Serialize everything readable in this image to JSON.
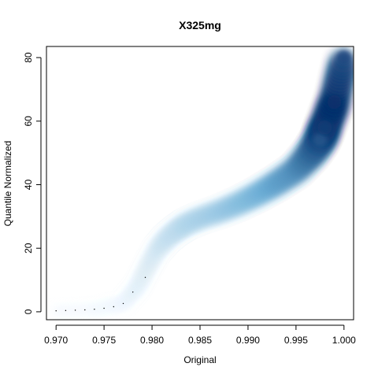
{
  "chart_data": {
    "type": "scatter",
    "style": "smoothScatter density",
    "title": "X325mg",
    "xlabel": "Original",
    "ylabel": "Quantile Normalized",
    "xlim": [
      0.969,
      1.001
    ],
    "ylim": [
      -2.5,
      83.5
    ],
    "x_ticks": [
      0.97,
      0.975,
      0.98,
      0.985,
      0.99,
      0.995,
      1.0
    ],
    "x_tick_labels": [
      "0.970",
      "0.975",
      "0.980",
      "0.985",
      "0.990",
      "0.995",
      "1.000"
    ],
    "y_ticks": [
      0,
      20,
      40,
      60,
      80
    ],
    "y_tick_labels": [
      "0",
      "20",
      "40",
      "60",
      "80"
    ],
    "color_low": "#ffffff",
    "color_high": "#08306b",
    "outlier_points": [
      {
        "x": 0.97,
        "y": 0.3
      },
      {
        "x": 0.971,
        "y": 0.4
      },
      {
        "x": 0.972,
        "y": 0.5
      },
      {
        "x": 0.973,
        "y": 0.6
      },
      {
        "x": 0.974,
        "y": 0.8
      },
      {
        "x": 0.975,
        "y": 1.1
      },
      {
        "x": 0.976,
        "y": 1.6
      },
      {
        "x": 0.977,
        "y": 2.6
      },
      {
        "x": 0.978,
        "y": 6.2
      },
      {
        "x": 0.9793,
        "y": 10.8
      }
    ],
    "density_curve": [
      {
        "x": 0.97,
        "y": 0.3,
        "d": 0.05
      },
      {
        "x": 0.974,
        "y": 0.8,
        "d": 0.06
      },
      {
        "x": 0.977,
        "y": 2.6,
        "d": 0.08
      },
      {
        "x": 0.9785,
        "y": 8.0,
        "d": 0.12
      },
      {
        "x": 0.9795,
        "y": 14.0,
        "d": 0.14
      },
      {
        "x": 0.9805,
        "y": 19.5,
        "d": 0.17
      },
      {
        "x": 0.9815,
        "y": 23.0,
        "d": 0.2
      },
      {
        "x": 0.9825,
        "y": 25.5,
        "d": 0.22
      },
      {
        "x": 0.9835,
        "y": 27.5,
        "d": 0.26
      },
      {
        "x": 0.985,
        "y": 29.5,
        "d": 0.3
      },
      {
        "x": 0.987,
        "y": 31.5,
        "d": 0.35
      },
      {
        "x": 0.989,
        "y": 34.0,
        "d": 0.4
      },
      {
        "x": 0.991,
        "y": 37.0,
        "d": 0.47
      },
      {
        "x": 0.993,
        "y": 40.5,
        "d": 0.55
      },
      {
        "x": 0.995,
        "y": 44.5,
        "d": 0.62
      },
      {
        "x": 0.9965,
        "y": 49.5,
        "d": 0.75
      },
      {
        "x": 0.9975,
        "y": 54.0,
        "d": 0.85
      },
      {
        "x": 0.998,
        "y": 58.0,
        "d": 0.95
      },
      {
        "x": 0.999,
        "y": 66.0,
        "d": 1.0
      },
      {
        "x": 1.0,
        "y": 80.0,
        "d": 0.9
      }
    ]
  }
}
